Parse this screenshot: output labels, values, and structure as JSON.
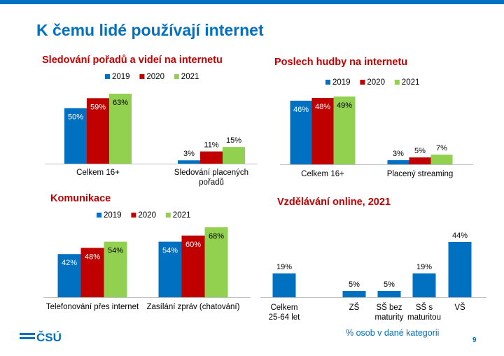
{
  "colors": {
    "brand_blue": "#0070C0",
    "title_red": "#C00000",
    "bar_2019": "#0070C0",
    "bar_2020": "#C00000",
    "bar_2021": "#92D050",
    "axis": "#BFBFBF"
  },
  "page": {
    "title": "K čemu lidé používají internet",
    "footnote": "% osob v dané kategorii",
    "page_number": "9",
    "logo_text": "ČSÚ"
  },
  "chart_data": [
    {
      "type": "bar",
      "title": "Sledování pořadů a videí na internetu",
      "legend_position": "top",
      "categories": [
        [
          "Celkem 16+"
        ],
        [
          "Sledování placených",
          "pořadů"
        ]
      ],
      "series": [
        {
          "name": "2019",
          "color": "#0070C0",
          "values": [
            50,
            3
          ],
          "labels": [
            "50%",
            "3%"
          ]
        },
        {
          "name": "2020",
          "color": "#C00000",
          "values": [
            59,
            11
          ],
          "labels": [
            "59%",
            "11%"
          ]
        },
        {
          "name": "2021",
          "color": "#92D050",
          "values": [
            63,
            15
          ],
          "labels": [
            "63%",
            "15%"
          ]
        }
      ],
      "ylim": [
        0,
        63
      ],
      "grid": false
    },
    {
      "type": "bar",
      "title": "Poslech hudby na internetu",
      "legend_position": "top",
      "categories": [
        [
          "Celkem 16+"
        ],
        [
          "Placený streaming"
        ]
      ],
      "series": [
        {
          "name": "2019",
          "color": "#0070C0",
          "values": [
            46,
            3
          ],
          "labels": [
            "46%",
            "3%"
          ]
        },
        {
          "name": "2020",
          "color": "#C00000",
          "values": [
            48,
            5
          ],
          "labels": [
            "48%",
            "5%"
          ]
        },
        {
          "name": "2021",
          "color": "#92D050",
          "values": [
            49,
            7
          ],
          "labels": [
            "49%",
            "7%"
          ]
        }
      ],
      "ylim": [
        0,
        49
      ],
      "grid": false
    },
    {
      "type": "bar",
      "title": "Komunikace",
      "legend_position": "top",
      "categories": [
        [
          "Telefonování přes internet"
        ],
        [
          "Zasílání zpráv (chatování)"
        ]
      ],
      "series": [
        {
          "name": "2019",
          "color": "#0070C0",
          "values": [
            42,
            54
          ],
          "labels": [
            "42%",
            "54%"
          ]
        },
        {
          "name": "2020",
          "color": "#C00000",
          "values": [
            48,
            60
          ],
          "labels": [
            "48%",
            "60%"
          ]
        },
        {
          "name": "2021",
          "color": "#92D050",
          "values": [
            54,
            68
          ],
          "labels": [
            "54%",
            "68%"
          ]
        }
      ],
      "ylim": [
        0,
        68
      ],
      "grid": false
    },
    {
      "type": "bar",
      "title": "Vzdělávání online, 2021",
      "legend_position": "none",
      "categories": [
        [
          "Celkem",
          "25-64 let"
        ],
        [
          "ZŠ"
        ],
        [
          "SŠ bez",
          "maturity"
        ],
        [
          "SŠ s",
          "maturitou"
        ],
        [
          "VŠ"
        ]
      ],
      "series": [
        {
          "name": "",
          "color": "#0070C0",
          "values": [
            19,
            5,
            5,
            19,
            44
          ],
          "labels": [
            "19%",
            "5%",
            "5%",
            "19%",
            "44%"
          ]
        }
      ],
      "ylim": [
        0,
        44
      ],
      "grid": false
    }
  ]
}
